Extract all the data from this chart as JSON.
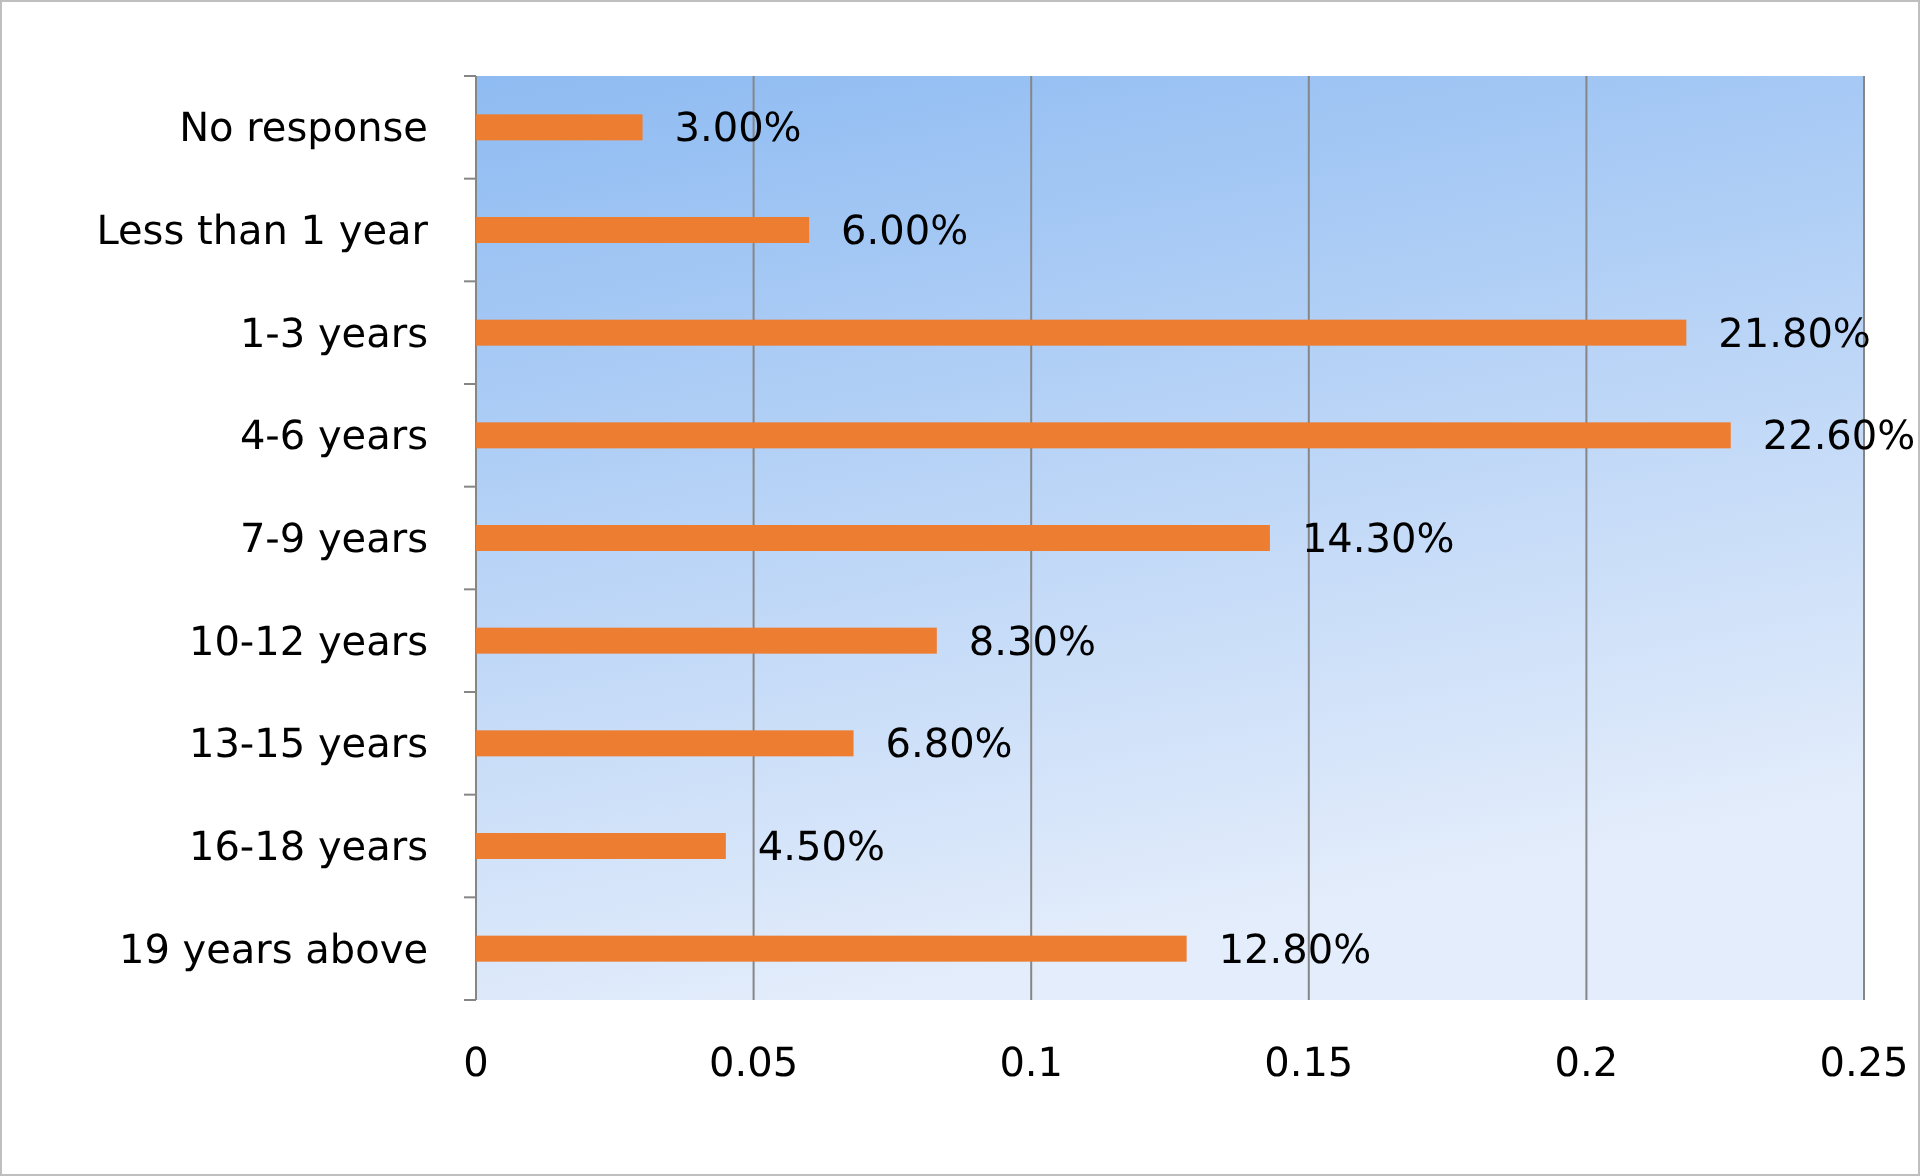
{
  "chart_data": {
    "type": "bar",
    "orientation": "horizontal",
    "categories": [
      "No response",
      "Less than 1 year",
      "1-3 years",
      "4-6 years",
      "7-9 years",
      "10-12 years",
      "13-15 years",
      "16-18 years",
      "19 years above"
    ],
    "values": [
      0.03,
      0.06,
      0.218,
      0.226,
      0.143,
      0.083,
      0.068,
      0.045,
      0.128
    ],
    "value_labels": [
      "3.00%",
      "6.00%",
      "21.80%",
      "22.60%",
      "14.30%",
      "8.30%",
      "6.80%",
      "4.50%",
      "12.80%"
    ],
    "color": "#ed7d31",
    "xlim": [
      0,
      0.25
    ],
    "xticks": [
      0,
      0.05,
      0.1,
      0.15,
      0.2,
      0.25
    ],
    "grid": "x"
  }
}
